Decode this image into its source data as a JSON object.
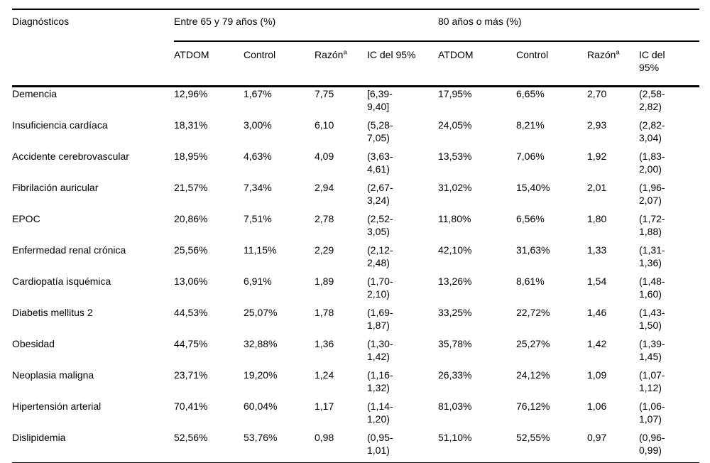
{
  "table": {
    "col1_header": "Diagnósticos",
    "group_headers": [
      "Entre 65 y 79 años (%)",
      "80 años o más (%)"
    ],
    "sub_headers": [
      "ATDOM",
      "Control",
      "Razón",
      "IC del 95%",
      "ATDOM",
      "Control",
      "Razón",
      "IC del 95%"
    ],
    "footnote_marker": "a",
    "rows": [
      {
        "diagnostico": "Demencia",
        "cells": [
          "12,96%",
          "1,67%",
          "7,75",
          "[6,39-\n9,40]",
          "17,95%",
          "6,65%",
          "2,70",
          "(2,58-\n2,82)"
        ]
      },
      {
        "diagnostico": "Insuficiencia cardíaca",
        "cells": [
          "18,31%",
          "3,00%",
          "6,10",
          "(5,28-\n7,05)",
          "24,05%",
          "8,21%",
          "2,93",
          "(2,82-\n3,04)"
        ]
      },
      {
        "diagnostico": "Accidente cerebrovascular",
        "cells": [
          "18,95%",
          "4,63%",
          "4,09",
          "(3,63-\n4,61)",
          "13,53%",
          "7,06%",
          "1,92",
          "(1,83-\n2,00)"
        ]
      },
      {
        "diagnostico": "Fibrilación auricular",
        "cells": [
          "21,57%",
          "7,34%",
          "2,94",
          "(2,67-\n3,24)",
          "31,02%",
          "15,40%",
          "2,01",
          "(1,96-\n2,07)"
        ]
      },
      {
        "diagnostico": "EPOC",
        "cells": [
          "20,86%",
          "7,51%",
          "2,78",
          "(2,52-\n3,05)",
          "11,80%",
          "6,56%",
          "1,80",
          "(1,72-\n1,88)"
        ]
      },
      {
        "diagnostico": "Enfermedad renal crónica",
        "cells": [
          "25,56%",
          "11,15%",
          "2,29",
          "(2,12-\n2,48)",
          "42,10%",
          "31,63%",
          "1,33",
          "(1,31-\n1,36)"
        ]
      },
      {
        "diagnostico": "Cardiopatía isquémica",
        "cells": [
          "13,06%",
          "6,91%",
          "1,89",
          "(1,70-\n2,10)",
          "13,26%",
          "8,61%",
          "1,54",
          "(1,48-\n1,60)"
        ]
      },
      {
        "diagnostico": "Diabetis mellitus 2",
        "cells": [
          "44,53%",
          "25,07%",
          "1,78",
          "(1,69-\n1,87)",
          "33,25%",
          "22,72%",
          "1,46",
          "(1,43-\n1,50)"
        ]
      },
      {
        "diagnostico": "Obesidad",
        "cells": [
          "44,75%",
          "32,88%",
          "1,36",
          "(1,30-\n1,42)",
          "35,78%",
          "25,27%",
          "1,42",
          "(1,39-\n1,45)"
        ]
      },
      {
        "diagnostico": "Neoplasia maligna",
        "cells": [
          "23,71%",
          "19,20%",
          "1,24",
          "(1,16-\n1,32)",
          "26,33%",
          "24,12%",
          "1,09",
          "(1,07-\n1,12)"
        ]
      },
      {
        "diagnostico": "Hipertensión arterial",
        "cells": [
          "70,41%",
          "60,04%",
          "1,17",
          "(1,14-\n1,20)",
          "81,03%",
          "76,12%",
          "1,06",
          "(1,06-\n1,07)"
        ]
      },
      {
        "diagnostico": "Dislipidemia",
        "cells": [
          "52,56%",
          "53,76%",
          "0,98",
          "(0,95-\n1,01)",
          "51,10%",
          "52,55%",
          "0,97",
          "(0,96-\n0,99)"
        ]
      }
    ]
  }
}
